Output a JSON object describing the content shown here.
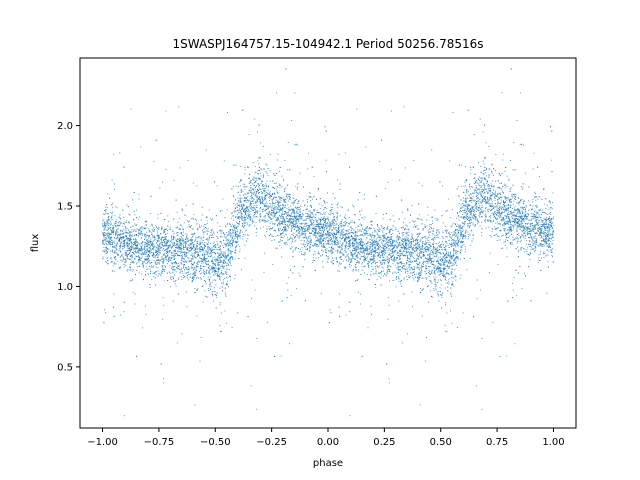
{
  "chart_data": {
    "type": "scatter",
    "title": "1SWASPJ164757.15-104942.1 Period 50256.78516s",
    "xlabel": "phase",
    "ylabel": "flux",
    "xlim": [
      -1.1,
      1.1
    ],
    "ylim": [
      0.12,
      2.42
    ],
    "xticks": [
      -1.0,
      -0.75,
      -0.5,
      -0.25,
      0.0,
      0.25,
      0.5,
      0.75,
      1.0
    ],
    "xtick_labels": [
      "−1.00",
      "−0.75",
      "−0.50",
      "−0.25",
      "0.00",
      "0.25",
      "0.50",
      "0.75",
      "1.00"
    ],
    "yticks": [
      0.5,
      1.0,
      1.5,
      2.0
    ],
    "ytick_labels": [
      "0.5",
      "1.0",
      "1.5",
      "2.0"
    ],
    "grid": false,
    "point_color": "#1f77b4",
    "light_curve_profile": {
      "phase": [
        0.0,
        0.05,
        0.1,
        0.15,
        0.2,
        0.25,
        0.3,
        0.35,
        0.4,
        0.45,
        0.5,
        0.55,
        0.58,
        0.62,
        0.65,
        0.68,
        0.72,
        0.76,
        0.8,
        0.85,
        0.9,
        0.95,
        1.0
      ],
      "flux": [
        1.33,
        1.3,
        1.27,
        1.25,
        1.24,
        1.23,
        1.22,
        1.22,
        1.21,
        1.19,
        1.17,
        1.16,
        1.32,
        1.45,
        1.52,
        1.56,
        1.55,
        1.49,
        1.44,
        1.4,
        1.37,
        1.34,
        1.33
      ],
      "scatter_sd": [
        0.08,
        0.08,
        0.08,
        0.08,
        0.08,
        0.08,
        0.08,
        0.09,
        0.09,
        0.1,
        0.11,
        0.11,
        0.1,
        0.09,
        0.09,
        0.1,
        0.1,
        0.09,
        0.09,
        0.09,
        0.08,
        0.08,
        0.08
      ]
    }
  }
}
